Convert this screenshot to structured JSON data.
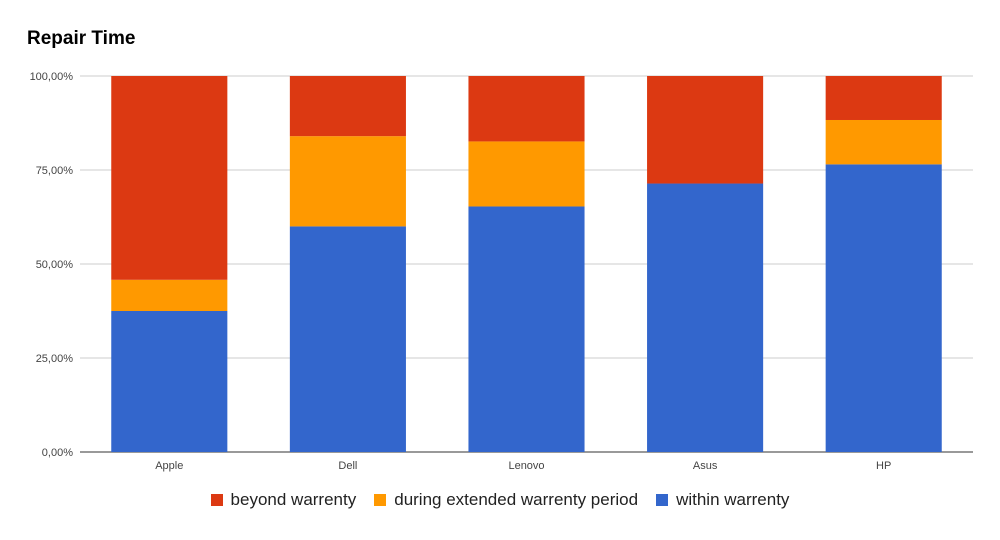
{
  "chart_data": {
    "type": "bar",
    "stacked": true,
    "title": "Repair Time",
    "xlabel": "",
    "ylabel": "",
    "categories": [
      "Apple",
      "Dell",
      "Lenovo",
      "Asus",
      "HP"
    ],
    "series": [
      {
        "name": "within warrenty",
        "color": "#3366cc",
        "values": [
          37.5,
          60.0,
          65.3,
          71.4,
          76.5
        ]
      },
      {
        "name": "during extended warrenty period",
        "color": "#ff9900",
        "values": [
          8.3,
          24.0,
          17.3,
          0.0,
          11.8
        ]
      },
      {
        "name": "beyond warrenty",
        "color": "#dc3912",
        "values": [
          54.2,
          16.0,
          17.4,
          28.6,
          11.7
        ]
      }
    ],
    "ylim": [
      0,
      100
    ],
    "yticks": [
      "0,00%",
      "25,00%",
      "50,00%",
      "75,00%",
      "100,00%"
    ],
    "ytick_values": [
      0,
      25,
      50,
      75,
      100
    ],
    "legend_position": "bottom",
    "legend_order": [
      "beyond warrenty",
      "during extended warrenty period",
      "within warrenty"
    ],
    "grid": true
  }
}
